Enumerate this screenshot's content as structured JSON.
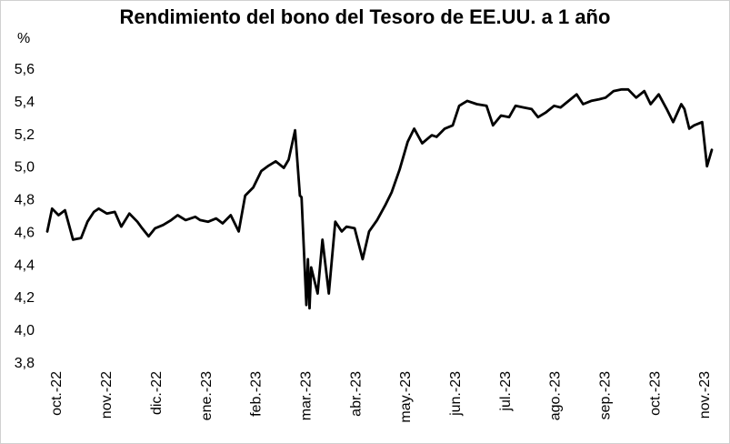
{
  "chart_data": {
    "type": "line",
    "title": "Rendimiento del bono del Tesoro de EE.UU. a 1 año",
    "xlabel": "",
    "ylabel": "%",
    "ylim": [
      3.8,
      5.6
    ],
    "y_ticks": [
      "3,8",
      "4,0",
      "4,2",
      "4,4",
      "4,6",
      "4,8",
      "5,0",
      "5,2",
      "5,4",
      "5,6"
    ],
    "x_ticks": [
      "oct.-22",
      "nov.-22",
      "dic.-22",
      "ene.-23",
      "feb.-23",
      "mar.-23",
      "abr.-23",
      "may.-23",
      "jun.-23",
      "jul.-23",
      "ago.-23",
      "sep.-23",
      "oct.-23",
      "nov.-23"
    ],
    "grid": false,
    "legend": "none",
    "line_color": "#000000",
    "series": [
      {
        "x": [
          "2022-10-03",
          "2022-10-06",
          "2022-10-10",
          "2022-10-14",
          "2022-10-19",
          "2022-10-24",
          "2022-10-28",
          "2022-11-01",
          "2022-11-04",
          "2022-11-09",
          "2022-11-14",
          "2022-11-18",
          "2022-11-23",
          "2022-11-28",
          "2022-12-01",
          "2022-12-05",
          "2022-12-09",
          "2022-12-14",
          "2022-12-19",
          "2022-12-23",
          "2022-12-28",
          "2023-01-03",
          "2023-01-06",
          "2023-01-11",
          "2023-01-16",
          "2023-01-20",
          "2023-01-25",
          "2023-01-30",
          "2023-02-03",
          "2023-02-08",
          "2023-02-13",
          "2023-02-17",
          "2023-02-22",
          "2023-02-27",
          "2023-03-02",
          "2023-03-06",
          "2023-03-09",
          "2023-03-10",
          "2023-03-13",
          "2023-03-14",
          "2023-03-15",
          "2023-03-16",
          "2023-03-20",
          "2023-03-23",
          "2023-03-27",
          "2023-03-31",
          "2023-04-04",
          "2023-04-07",
          "2023-04-12",
          "2023-04-17",
          "2023-04-21",
          "2023-04-26",
          "2023-05-01",
          "2023-05-05",
          "2023-05-10",
          "2023-05-15",
          "2023-05-19",
          "2023-05-24",
          "2023-05-30",
          "2023-06-02",
          "2023-06-07",
          "2023-06-12",
          "2023-06-16",
          "2023-06-21",
          "2023-06-27",
          "2023-07-03",
          "2023-07-07",
          "2023-07-12",
          "2023-07-17",
          "2023-07-21",
          "2023-07-26",
          "2023-07-31",
          "2023-08-04",
          "2023-08-09",
          "2023-08-14",
          "2023-08-18",
          "2023-08-23",
          "2023-08-28",
          "2023-09-01",
          "2023-09-06",
          "2023-09-11",
          "2023-09-15",
          "2023-09-20",
          "2023-09-25",
          "2023-09-29",
          "2023-10-04",
          "2023-10-09",
          "2023-10-13",
          "2023-10-18",
          "2023-10-23",
          "2023-10-27",
          "2023-11-01",
          "2023-11-03",
          "2023-11-06",
          "2023-11-09",
          "2023-11-14",
          "2023-11-17",
          "2023-11-20"
        ],
        "y": [
          4.6,
          4.74,
          4.7,
          4.73,
          4.55,
          4.56,
          4.66,
          4.72,
          4.74,
          4.71,
          4.72,
          4.63,
          4.71,
          4.66,
          4.62,
          4.57,
          4.62,
          4.64,
          4.67,
          4.7,
          4.67,
          4.69,
          4.67,
          4.66,
          4.68,
          4.65,
          4.7,
          4.6,
          4.82,
          4.87,
          4.97,
          5.0,
          5.03,
          4.99,
          5.04,
          5.22,
          4.82,
          4.81,
          4.15,
          4.43,
          4.13,
          4.38,
          4.22,
          4.55,
          4.22,
          4.66,
          4.6,
          4.63,
          4.62,
          4.43,
          4.6,
          4.67,
          4.76,
          4.84,
          4.98,
          5.15,
          5.23,
          5.14,
          5.19,
          5.18,
          5.23,
          5.25,
          5.37,
          5.4,
          5.38,
          5.37,
          5.25,
          5.31,
          5.3,
          5.37,
          5.36,
          5.35,
          5.3,
          5.33,
          5.37,
          5.36,
          5.4,
          5.44,
          5.38,
          5.4,
          5.41,
          5.42,
          5.46,
          5.47,
          5.47,
          5.42,
          5.46,
          5.38,
          5.44,
          5.35,
          5.27,
          5.38,
          5.35,
          5.23,
          5.25,
          5.27,
          5.0,
          5.1
        ]
      }
    ]
  }
}
